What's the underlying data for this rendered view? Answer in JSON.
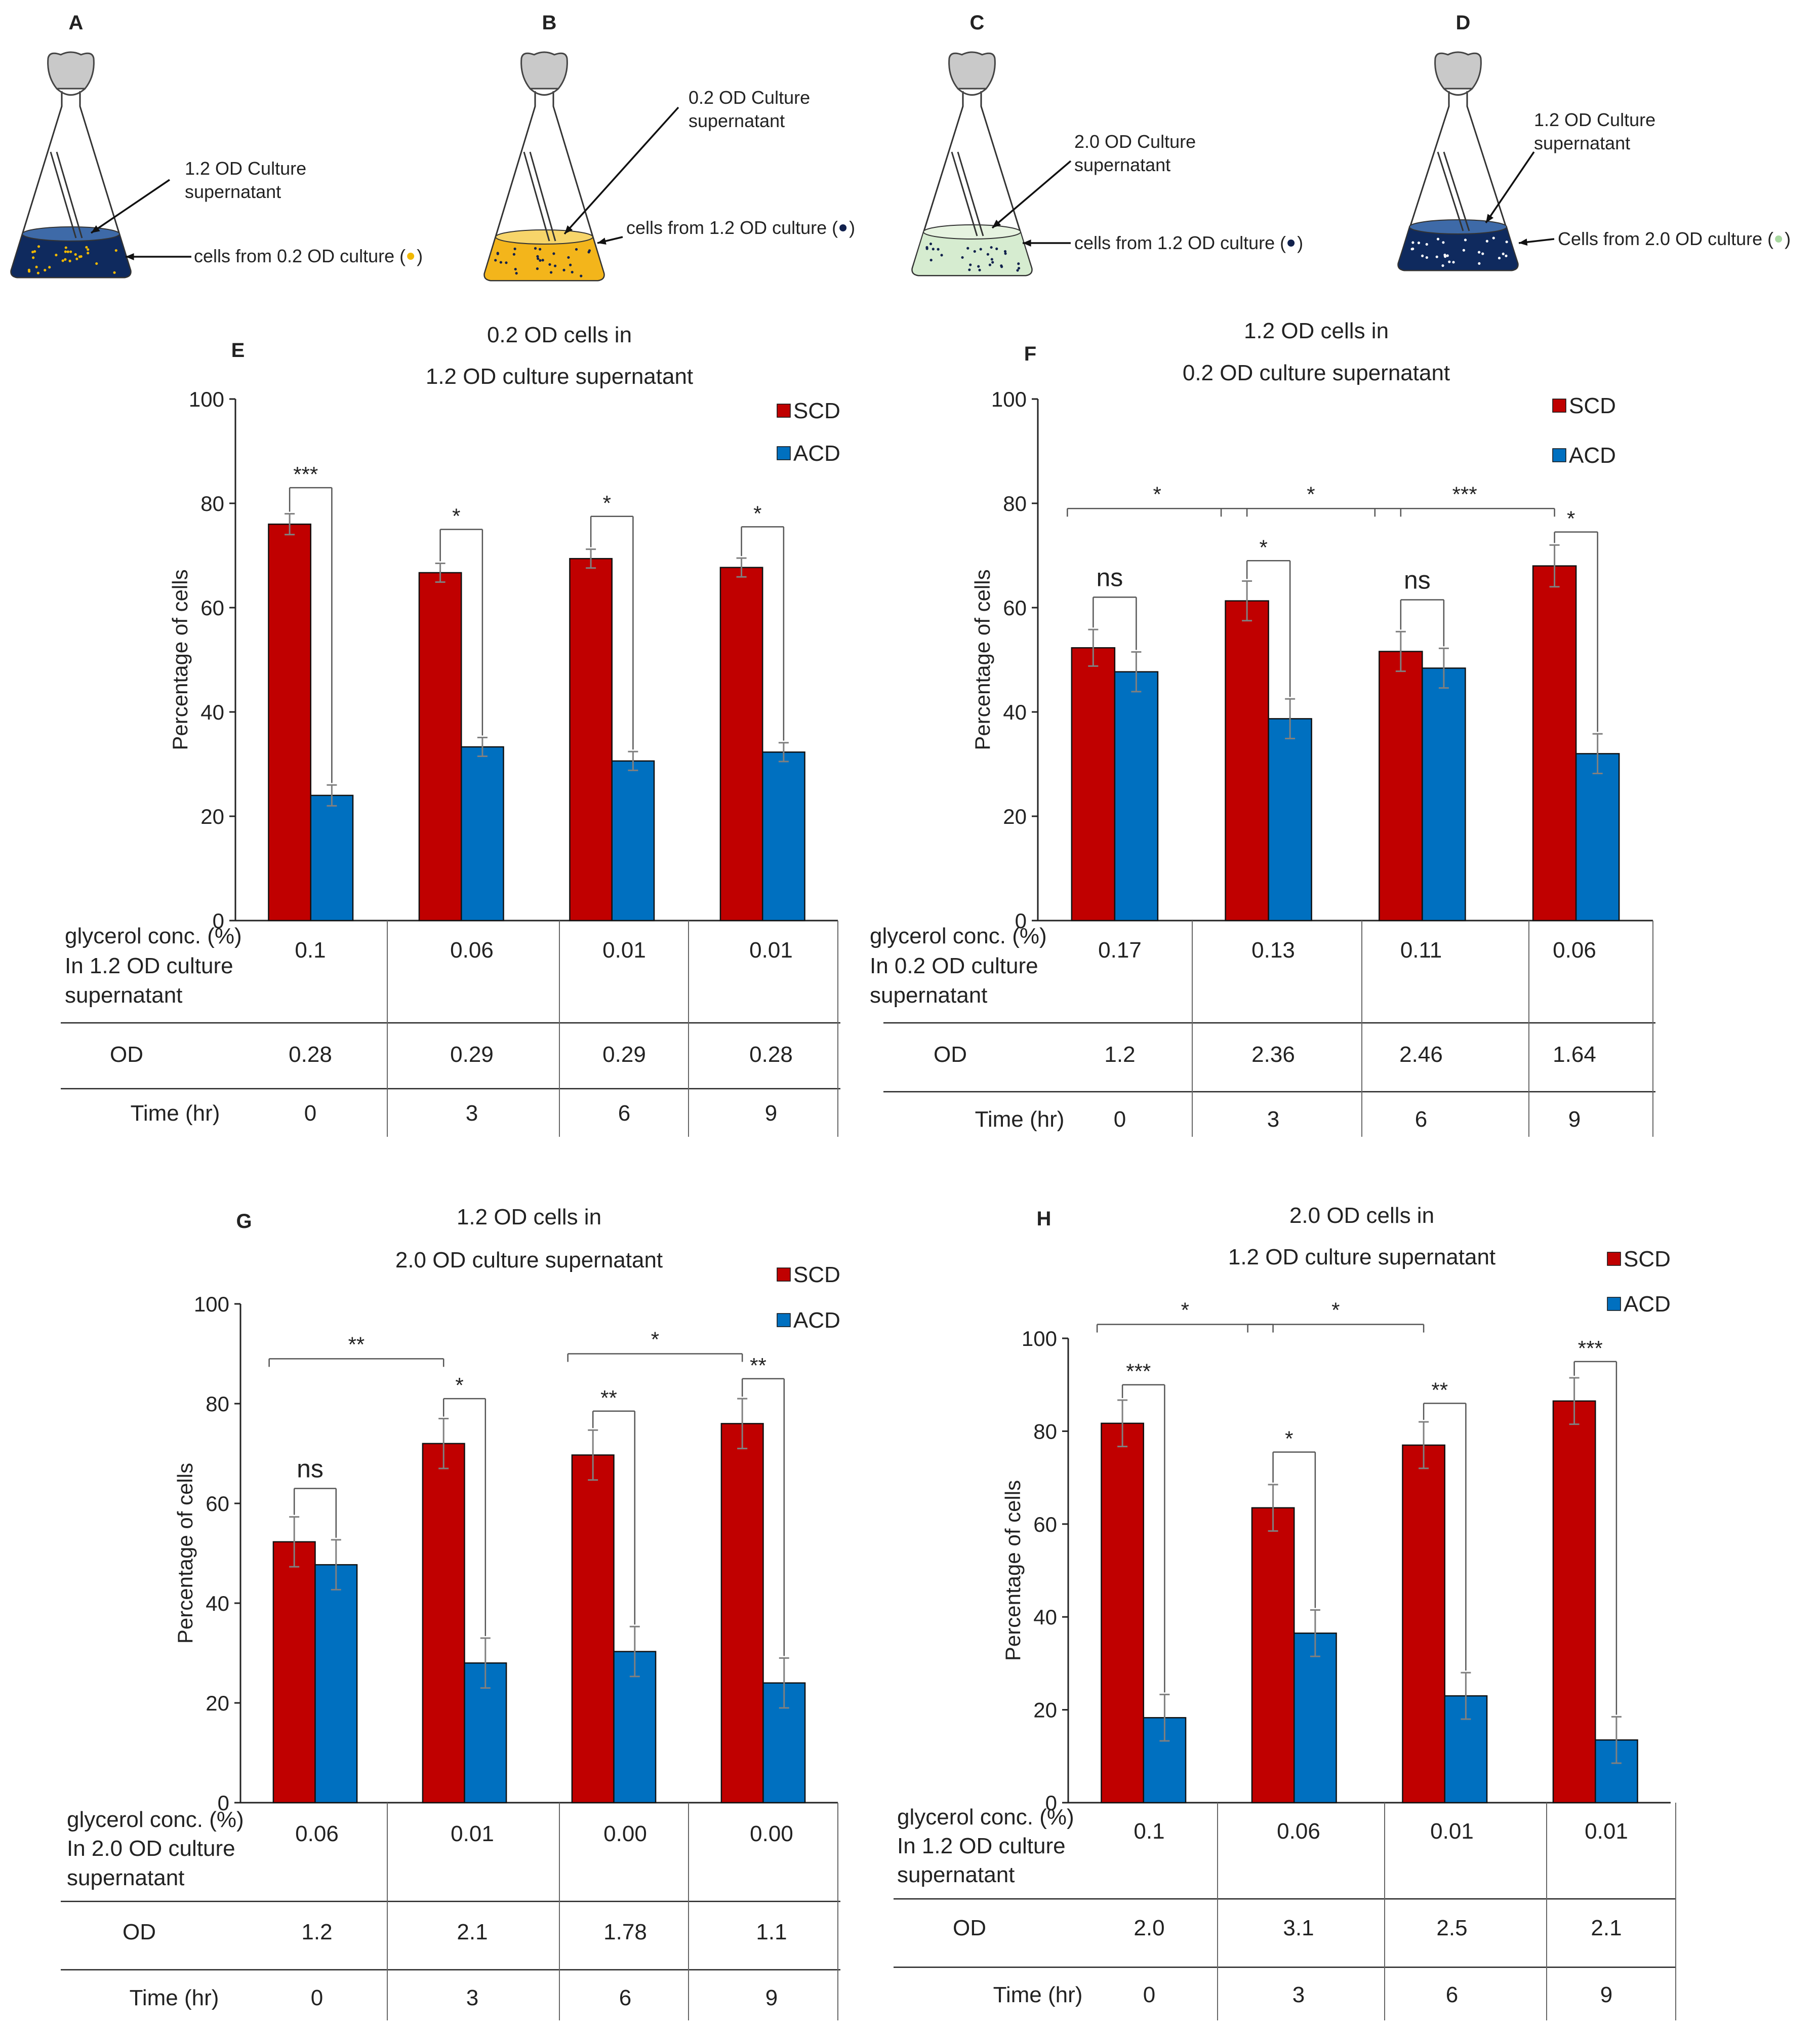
{
  "colors": {
    "scd": "#C00000",
    "acd": "#0070C0",
    "axis": "#222222",
    "err": "#808080",
    "bracket": "#555555"
  },
  "flasks": [
    {
      "label": "A",
      "supernatant": [
        "1.2 OD  Culture",
        "supernatant"
      ],
      "cells": "cells from 0.2 OD culture (",
      "cells_end": ")",
      "liquid": "#0f2a5e",
      "rim": "#3e6aa8",
      "dot": "#f1b800",
      "cell_dot": "#f1b800"
    },
    {
      "label": "B",
      "supernatant": [
        "0.2 OD Culture",
        "supernatant"
      ],
      "cells": "cells from 1.2 OD culture (",
      "cells_end": ")",
      "liquid": "#f3b51b",
      "rim": "#f7d56a",
      "dot": "#11214d",
      "cell_dot": "#11214d"
    },
    {
      "label": "C",
      "supernatant": [
        "2.0 OD Culture",
        "supernatant"
      ],
      "cells": "cells from 1.2 OD culture (",
      "cells_end": ")",
      "liquid": "#d6ecd0",
      "rim": "#e6f3e0",
      "dot": "#11214d",
      "cell_dot": "#11214d"
    },
    {
      "label": "D",
      "supernatant": [
        "1.2 OD Culture",
        "supernatant"
      ],
      "cells": "Cells from 2.0 OD culture (",
      "cells_end": ")",
      "liquid": "#0f2a5e",
      "rim": "#3e6aa8",
      "dot": "#ffffff",
      "cell_dot": "#a8d8a0"
    }
  ],
  "chart_data": [
    {
      "panel": "E",
      "type": "bar",
      "title": [
        "0.2 OD cells in",
        "1.2 OD culture supernatant"
      ],
      "ylabel": "Percentage of cells",
      "ylim": [
        0,
        100
      ],
      "yticks": [
        0,
        20,
        40,
        60,
        80,
        100
      ],
      "series": [
        {
          "name": "SCD",
          "values": [
            76,
            66.7,
            69.4,
            67.7
          ],
          "errors": [
            2,
            1.8,
            1.8,
            1.8
          ]
        },
        {
          "name": "ACD",
          "values": [
            24,
            33.3,
            30.6,
            32.3
          ],
          "errors": [
            2,
            1.8,
            1.8,
            1.8
          ]
        }
      ],
      "legend": "top-right",
      "table": {
        "rows": [
          {
            "label": [
              "glycerol conc. (%)",
              "In 1.2 OD culture",
              "supernatant"
            ],
            "values": [
              "0.1",
              "0.06",
              "0.01",
              "0.01"
            ]
          },
          {
            "label": [
              "OD"
            ],
            "values": [
              "0.28",
              "0.29",
              "0.29",
              "0.28"
            ]
          },
          {
            "label": [
              "Time (hr)"
            ],
            "values": [
              "0",
              "3",
              "6",
              "9"
            ]
          }
        ]
      },
      "significance": [
        {
          "kind": "pair",
          "group": 0,
          "top": 83,
          "text": "***"
        },
        {
          "kind": "pair",
          "group": 1,
          "top": 75,
          "text": "*"
        },
        {
          "kind": "pair",
          "group": 2,
          "top": 77.5,
          "text": "*"
        },
        {
          "kind": "pair",
          "group": 3,
          "top": 75.5,
          "text": "*"
        }
      ]
    },
    {
      "panel": "F",
      "type": "bar",
      "title": [
        "1.2 OD cells in",
        "0.2 OD culture supernatant"
      ],
      "ylabel": "Percentage of cells",
      "ylim": [
        0,
        100
      ],
      "yticks": [
        0,
        20,
        40,
        60,
        80,
        100
      ],
      "series": [
        {
          "name": "SCD",
          "values": [
            52.3,
            61.3,
            51.6,
            68
          ],
          "errors": [
            3.5,
            3.8,
            3.8,
            4
          ]
        },
        {
          "name": "ACD",
          "values": [
            47.7,
            38.7,
            48.4,
            32
          ],
          "errors": [
            3.8,
            3.8,
            3.8,
            3.8
          ]
        }
      ],
      "legend": "top-right",
      "table": {
        "rows": [
          {
            "label": [
              "glycerol conc. (%)",
              "In 0.2 OD culture",
              "supernatant"
            ],
            "values": [
              "0.17",
              "0.13",
              "0.11",
              "0.06"
            ]
          },
          {
            "label": [
              "OD"
            ],
            "values": [
              "1.2",
              "2.36",
              "2.46",
              "1.64"
            ]
          },
          {
            "label": [
              "Time (hr)"
            ],
            "values": [
              "0",
              "3",
              "6",
              "9"
            ]
          }
        ]
      },
      "significance": [
        {
          "kind": "pair",
          "group": 0,
          "top": 62,
          "text": "ns"
        },
        {
          "kind": "pair",
          "group": 1,
          "top": 69,
          "text": "*"
        },
        {
          "kind": "pair",
          "group": 2,
          "top": 61.5,
          "text": "ns"
        },
        {
          "kind": "pair",
          "group": 3,
          "top": 74.5,
          "text": "*"
        },
        {
          "kind": "span",
          "from": 0,
          "to": 1,
          "top": 79,
          "text": "*"
        },
        {
          "kind": "span",
          "from": 1,
          "to": 2,
          "top": 79,
          "text": "*"
        },
        {
          "kind": "span",
          "from": 2,
          "to": 3,
          "top": 79,
          "text": "***"
        }
      ]
    },
    {
      "panel": "G",
      "type": "bar",
      "title": [
        "1.2 OD cells in",
        "2.0 OD culture supernatant"
      ],
      "ylabel": "Percentage of cells",
      "ylim": [
        0,
        100
      ],
      "yticks": [
        0,
        20,
        40,
        60,
        80,
        100
      ],
      "series": [
        {
          "name": "SCD",
          "values": [
            52.3,
            72,
            69.7,
            76
          ],
          "errors": [
            5,
            5,
            5,
            5
          ]
        },
        {
          "name": "ACD",
          "values": [
            47.7,
            28,
            30.3,
            24
          ],
          "errors": [
            5,
            5,
            5,
            5
          ]
        }
      ],
      "legend": "top-right",
      "table": {
        "rows": [
          {
            "label": [
              "glycerol conc. (%)",
              "In 2.0 OD culture",
              "supernatant"
            ],
            "values": [
              "0.06",
              "0.01",
              "0.00",
              "0.00"
            ]
          },
          {
            "label": [
              "OD"
            ],
            "values": [
              "1.2",
              "2.1",
              "1.78",
              "1.1"
            ]
          },
          {
            "label": [
              "Time (hr)"
            ],
            "values": [
              "0",
              "3",
              "6",
              "9"
            ]
          }
        ]
      },
      "significance": [
        {
          "kind": "pair",
          "group": 0,
          "top": 63,
          "text": "ns"
        },
        {
          "kind": "pair",
          "group": 1,
          "top": 81,
          "text": "*"
        },
        {
          "kind": "pair",
          "group": 2,
          "top": 78.5,
          "text": "**"
        },
        {
          "kind": "pair",
          "group": 3,
          "top": 85,
          "text": "**"
        },
        {
          "kind": "span",
          "from": 0,
          "to": 1,
          "top": 89,
          "text": "**"
        },
        {
          "kind": "span",
          "from": 2,
          "to": 3,
          "top": 90,
          "text": "*"
        }
      ]
    },
    {
      "panel": "H",
      "type": "bar",
      "title": [
        "2.0 OD cells in",
        "1.2 OD culture supernatant"
      ],
      "ylabel": "Percentage of cells",
      "ylim": [
        0,
        100
      ],
      "yticks": [
        0,
        20,
        40,
        60,
        80,
        100
      ],
      "series": [
        {
          "name": "SCD",
          "values": [
            81.7,
            63.5,
            77,
            86.5
          ],
          "errors": [
            5,
            5,
            5,
            5
          ]
        },
        {
          "name": "ACD",
          "values": [
            18.3,
            36.5,
            23,
            13.5
          ],
          "errors": [
            5,
            5,
            5,
            5
          ]
        }
      ],
      "legend": "top-right",
      "table": {
        "rows": [
          {
            "label": [
              "glycerol conc. (%)",
              "In 1.2 OD culture",
              "supernatant"
            ],
            "values": [
              "0.1",
              "0.06",
              "0.01",
              "0.01"
            ]
          },
          {
            "label": [
              "OD"
            ],
            "values": [
              "2.0",
              "3.1",
              "2.5",
              "2.1"
            ]
          },
          {
            "label": [
              "Time (hr)"
            ],
            "values": [
              "0",
              "3",
              "6",
              "9"
            ]
          }
        ]
      },
      "significance": [
        {
          "kind": "pair",
          "group": 0,
          "top": 90,
          "text": "***"
        },
        {
          "kind": "pair",
          "group": 1,
          "top": 75.5,
          "text": "*"
        },
        {
          "kind": "pair",
          "group": 2,
          "top": 86,
          "text": "**"
        },
        {
          "kind": "pair",
          "group": 3,
          "top": 95,
          "text": "***"
        },
        {
          "kind": "span",
          "from": 0,
          "to": 1,
          "top": 103,
          "text": "*"
        },
        {
          "kind": "span",
          "from": 1,
          "to": 2,
          "top": 103,
          "text": "*"
        }
      ]
    }
  ]
}
